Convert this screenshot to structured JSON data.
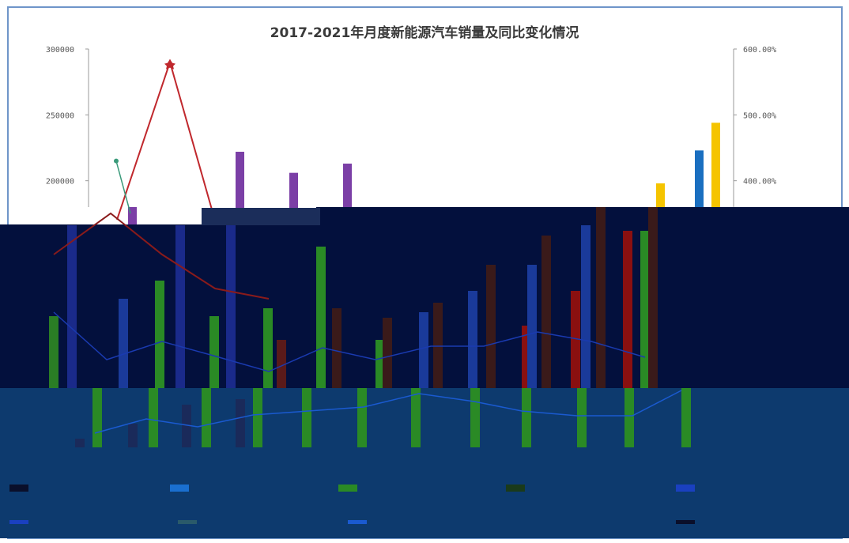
{
  "chart_data": {
    "type": "bar",
    "title": "2017-2021年月度新能源汽车销量及同比变化情况",
    "y_left": {
      "ylim": [
        0,
        300000
      ],
      "tick_labels": [
        "300000",
        "250000",
        "200000"
      ]
    },
    "y_right": {
      "ylim": [
        0,
        6
      ],
      "tick_labels": [
        "600.00%",
        "500.00%",
        "400.00%"
      ]
    },
    "series": [
      {
        "type": "bar",
        "color": "#7b3fa6",
        "values": [
          180000,
          222000,
          206000,
          213000
        ]
      },
      {
        "type": "bar",
        "color": "#f5c400",
        "values": [
          198000,
          244000
        ]
      },
      {
        "type": "bar",
        "color": "#1a6fc0",
        "values": [
          223000
        ]
      },
      {
        "type": "line",
        "color": "#c0282d",
        "values": [
          5.8,
          3.2
        ]
      },
      {
        "type": "line",
        "color": "#3a9a7a",
        "values": [
          4.3,
          2.8
        ]
      }
    ],
    "legend": {
      "position": "bottom"
    },
    "glitch_colors": {
      "dark_band": "#03103d",
      "lower_band": "#0d3a6e"
    }
  }
}
